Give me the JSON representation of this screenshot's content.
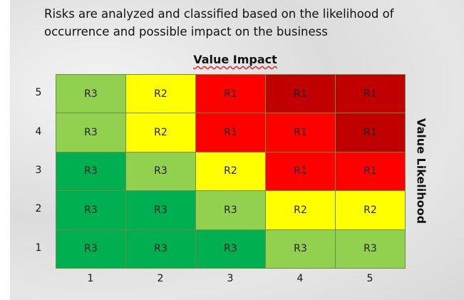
{
  "intro": [
    "Risks are analyzed and classified based on the likelihood of",
    "occurrence and possible impact on the business"
  ],
  "matrix": {
    "x_title": "Value Impact",
    "y_title": "Value Likelihood",
    "row_labels": [
      "5",
      "4",
      "3",
      "2",
      "1"
    ],
    "column_labels": [
      "1",
      "2",
      "3",
      "4",
      "5"
    ],
    "rows": [
      [
        {
          "label": "R3",
          "color": "#92d050"
        },
        {
          "label": "R2",
          "color": "#ffff00"
        },
        {
          "label": "R1",
          "color": "#ff0000"
        },
        {
          "label": "R1",
          "color": "#c00000"
        },
        {
          "label": "R1",
          "color": "#c00000"
        }
      ],
      [
        {
          "label": "R3",
          "color": "#92d050"
        },
        {
          "label": "R2",
          "color": "#ffff00"
        },
        {
          "label": "R1",
          "color": "#ff0000"
        },
        {
          "label": "R1",
          "color": "#ff0000"
        },
        {
          "label": "R1",
          "color": "#c00000"
        }
      ],
      [
        {
          "label": "R3",
          "color": "#00b050"
        },
        {
          "label": "R3",
          "color": "#92d050"
        },
        {
          "label": "R2",
          "color": "#ffff00"
        },
        {
          "label": "R1",
          "color": "#ff0000"
        },
        {
          "label": "R1",
          "color": "#ff0000"
        }
      ],
      [
        {
          "label": "R3",
          "color": "#00b050"
        },
        {
          "label": "R3",
          "color": "#00b050"
        },
        {
          "label": "R3",
          "color": "#92d050"
        },
        {
          "label": "R2",
          "color": "#ffff00"
        },
        {
          "label": "R2",
          "color": "#ffff00"
        }
      ],
      [
        {
          "label": "R3",
          "color": "#00b050"
        },
        {
          "label": "R3",
          "color": "#00b050"
        },
        {
          "label": "R3",
          "color": "#00b050"
        },
        {
          "label": "R3",
          "color": "#92d050"
        },
        {
          "label": "R3",
          "color": "#92d050"
        }
      ]
    ]
  }
}
